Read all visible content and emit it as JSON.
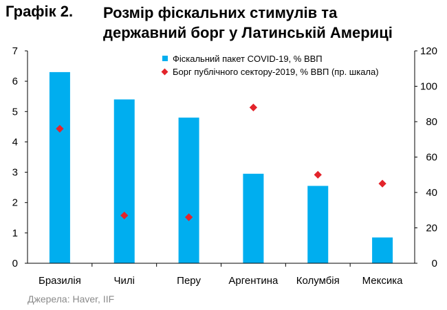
{
  "header": {
    "figure_label": "Графік 2.",
    "title_line1": "Розмір фіскальних стимулів та",
    "title_line2": "державний борг у Латинській Америці"
  },
  "source": "Джерела: Haver, IIF",
  "chart_data": {
    "type": "bar",
    "categories": [
      "Бразилія",
      "Чилі",
      "Перу",
      "Аргентина",
      "Колумбія",
      "Мексика"
    ],
    "series": [
      {
        "name": "Фіскальний пакет COVID-19, % ВВП",
        "kind": "bar",
        "axis": "left",
        "color": "#00AEEF",
        "values": [
          6.3,
          5.4,
          4.8,
          2.95,
          2.55,
          0.85
        ]
      },
      {
        "name": "Борг публічного сектору-2019, % ВВП (пр. шкала)",
        "kind": "marker",
        "axis": "right",
        "color": "#E3242B",
        "values": [
          76,
          27,
          26,
          88,
          50,
          45
        ]
      }
    ],
    "y_left": {
      "min": 0,
      "max": 7,
      "ticks": [
        "0",
        "1",
        "2",
        "3",
        "4",
        "5",
        "6",
        "7"
      ]
    },
    "y_right": {
      "min": 0,
      "max": 120,
      "ticks": [
        "0",
        "20",
        "40",
        "60",
        "80",
        "100",
        "120"
      ]
    },
    "grid": false,
    "legend_position": "top-right"
  }
}
